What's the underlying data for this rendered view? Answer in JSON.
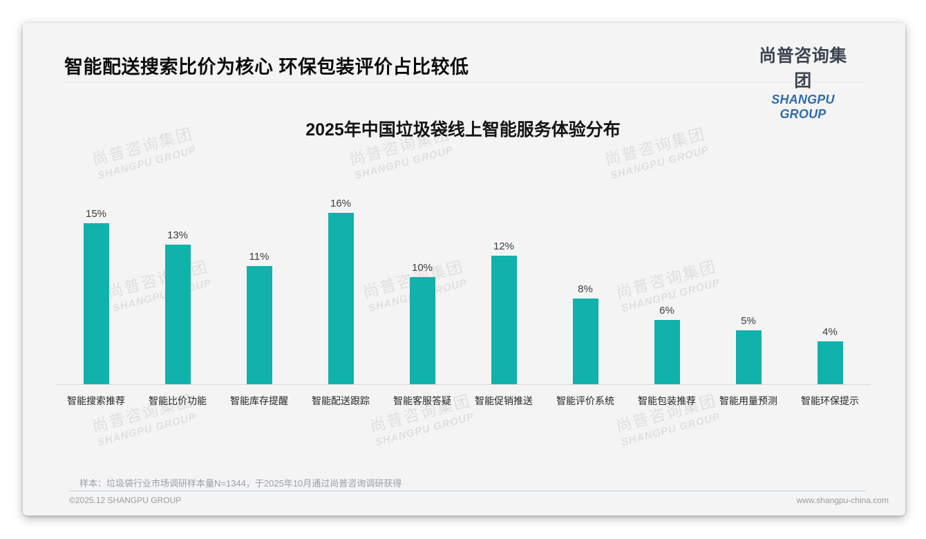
{
  "page": {
    "header": {
      "title": "智能配送搜索比价为核心 环保包装评价占比较低"
    },
    "logo": {
      "cn": "尚普咨询集团",
      "en": "SHANGPU GROUP",
      "en_color": "#2e6cab"
    },
    "watermark": {
      "cn": "尚普咨询集团",
      "en": "SHANGPU GROUP"
    },
    "note": "样本：垃圾袋行业市场调研样本量N=1344，于2025年10月通过尚普咨询调研获得",
    "footer": {
      "left": "©2025.12 SHANGPU GROUP",
      "right": "www.shangpu-china.com"
    }
  },
  "chart_data": {
    "type": "bar",
    "title": "2025年中国垃圾袋线上智能服务体验分布",
    "categories": [
      "智能搜索推荐",
      "智能比价功能",
      "智能库存提醒",
      "智能配送跟踪",
      "智能客服答疑",
      "智能促销推送",
      "智能评价系统",
      "智能包装推荐",
      "智能用量预测",
      "智能环保提示"
    ],
    "values": [
      15,
      13,
      11,
      16,
      10,
      12,
      8,
      6,
      5,
      4
    ],
    "unit": "%",
    "value_labels_shown": true,
    "bar_color": "#10b2ab",
    "xlabel": "",
    "ylabel": "",
    "ylim": [
      0,
      18
    ],
    "grid": false,
    "legend": false,
    "y_axis_shown": false
  }
}
